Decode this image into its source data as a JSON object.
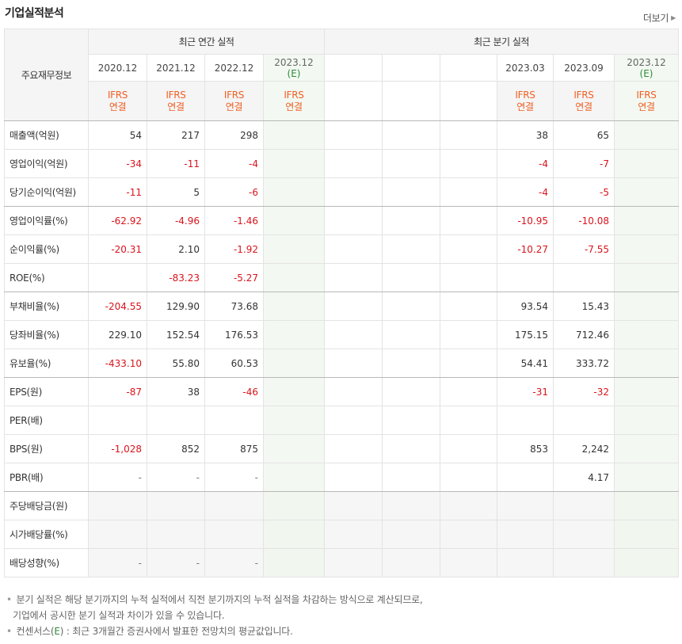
{
  "header": {
    "title": "기업실적분석",
    "more_label": "더보기"
  },
  "table": {
    "corner_label": "주요재무정보",
    "annual_group": "최근 연간 실적",
    "quarter_group": "최근 분기 실적",
    "annual_periods": [
      "2020.12",
      "2021.12",
      "2022.12",
      "2023.12"
    ],
    "quarter_periods": [
      "",
      "",
      "",
      "2023.03",
      "2023.09",
      "2023.12"
    ],
    "estimate_mark": "(E)",
    "ifrs_top": "IFRS",
    "ifrs_bottom": "연결",
    "rows": [
      {
        "label": "매출액(억원)",
        "annual": [
          "54",
          "217",
          "298",
          ""
        ],
        "quarter": [
          "",
          "",
          "",
          "38",
          "65",
          ""
        ]
      },
      {
        "label": "영업이익(억원)",
        "annual": [
          "-34",
          "-11",
          "-4",
          ""
        ],
        "quarter": [
          "",
          "",
          "",
          "-4",
          "-7",
          ""
        ]
      },
      {
        "label": "당기순이익(억원)",
        "annual": [
          "-11",
          "5",
          "-6",
          ""
        ],
        "quarter": [
          "",
          "",
          "",
          "-4",
          "-5",
          ""
        ]
      },
      {
        "label": "영업이익률(%)",
        "annual": [
          "-62.92",
          "-4.96",
          "-1.46",
          ""
        ],
        "quarter": [
          "",
          "",
          "",
          "-10.95",
          "-10.08",
          ""
        ]
      },
      {
        "label": "순이익률(%)",
        "annual": [
          "-20.31",
          "2.10",
          "-1.92",
          ""
        ],
        "quarter": [
          "",
          "",
          "",
          "-10.27",
          "-7.55",
          ""
        ]
      },
      {
        "label": "ROE(%)",
        "annual": [
          "",
          "-83.23",
          "-5.27",
          ""
        ],
        "quarter": [
          "",
          "",
          "",
          "",
          "",
          ""
        ]
      },
      {
        "label": "부채비율(%)",
        "annual": [
          "-204.55",
          "129.90",
          "73.68",
          ""
        ],
        "quarter": [
          "",
          "",
          "",
          "93.54",
          "15.43",
          ""
        ]
      },
      {
        "label": "당좌비율(%)",
        "annual": [
          "229.10",
          "152.54",
          "176.53",
          ""
        ],
        "quarter": [
          "",
          "",
          "",
          "175.15",
          "712.46",
          ""
        ]
      },
      {
        "label": "유보율(%)",
        "annual": [
          "-433.10",
          "55.80",
          "60.53",
          ""
        ],
        "quarter": [
          "",
          "",
          "",
          "54.41",
          "333.72",
          ""
        ]
      },
      {
        "label": "EPS(원)",
        "annual": [
          "-87",
          "38",
          "-46",
          ""
        ],
        "quarter": [
          "",
          "",
          "",
          "-31",
          "-32",
          ""
        ]
      },
      {
        "label": "PER(배)",
        "annual": [
          "",
          "",
          "",
          ""
        ],
        "quarter": [
          "",
          "",
          "",
          "",
          "",
          ""
        ]
      },
      {
        "label": "BPS(원)",
        "annual": [
          "-1,028",
          "852",
          "875",
          ""
        ],
        "quarter": [
          "",
          "",
          "",
          "853",
          "2,242",
          ""
        ]
      },
      {
        "label": "PBR(배)",
        "annual": [
          "-",
          "-",
          "-",
          ""
        ],
        "quarter": [
          "",
          "",
          "",
          "",
          "4.17",
          ""
        ]
      },
      {
        "label": "주당배당금(원)",
        "annual": [
          "",
          "",
          "",
          ""
        ],
        "quarter": [
          "",
          "",
          "",
          "",
          "",
          ""
        ]
      },
      {
        "label": "시가배당률(%)",
        "annual": [
          "",
          "",
          "",
          ""
        ],
        "quarter": [
          "",
          "",
          "",
          "",
          "",
          ""
        ]
      },
      {
        "label": "배당성향(%)",
        "annual": [
          "-",
          "-",
          "-",
          ""
        ],
        "quarter": [
          "",
          "",
          "",
          "",
          "",
          ""
        ]
      }
    ]
  },
  "notes": {
    "line1": "분기 실적은 해당 분기까지의 누적 실적에서 직전 분기까지의 누적 실적을 차감하는 방식으로 계산되므로,",
    "line2": "기업에서 공시한 분기 실적과 차이가 있을 수 있습니다.",
    "line3_prefix": "컨센서스(",
    "line3_mark": "E",
    "line3_suffix": ") : 최근 3개월간 증권사에서 발표한 전망치의 평균값입니다."
  },
  "colors": {
    "negative": "#d9141c",
    "ifrs": "#f05f24",
    "estimate_bg": "#f3f9f2",
    "estimate_mark": "#2e8b3a"
  }
}
